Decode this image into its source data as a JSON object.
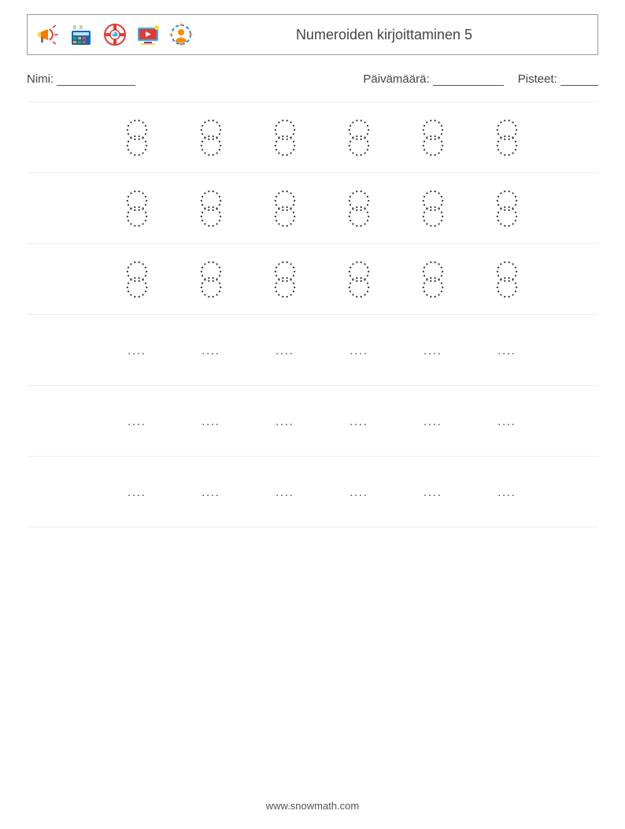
{
  "header": {
    "title": "Numeroiden kirjoittaminen 5",
    "icons": [
      {
        "name": "megaphone-icon",
        "colors": [
          "#f57c00",
          "#ffd54f",
          "#e53935"
        ]
      },
      {
        "name": "calculator-icon",
        "colors": [
          "#1565c0",
          "#43a047",
          "#ffb300",
          "#f4511e"
        ]
      },
      {
        "name": "lifebuoy-icon",
        "colors": [
          "#e53935",
          "#ffffff",
          "#29b6f6"
        ]
      },
      {
        "name": "video-monitor-icon",
        "colors": [
          "#29b6f6",
          "#e53935",
          "#fdd835",
          "#8e24aa"
        ]
      },
      {
        "name": "user-target-icon",
        "colors": [
          "#1e88e5",
          "#fb8c00",
          "#ffffff"
        ]
      }
    ]
  },
  "meta": {
    "name_label": "Nimi:",
    "date_label": "Päivämäärä:",
    "score_label": "Pisteet:"
  },
  "worksheet": {
    "trace_number": "8",
    "columns": 6,
    "rows": [
      {
        "type": "trace"
      },
      {
        "type": "trace"
      },
      {
        "type": "trace"
      },
      {
        "type": "dots"
      },
      {
        "type": "dots"
      },
      {
        "type": "dots"
      }
    ],
    "dots_placeholder": "....",
    "style": {
      "dot_color": "#333333",
      "dot_radius": 1.1,
      "glyph_width": 32,
      "glyph_height": 50,
      "row_border_color": "#eeeeee",
      "background_color": "#ffffff"
    }
  },
  "footer": {
    "url": "www.snowmath.com"
  }
}
